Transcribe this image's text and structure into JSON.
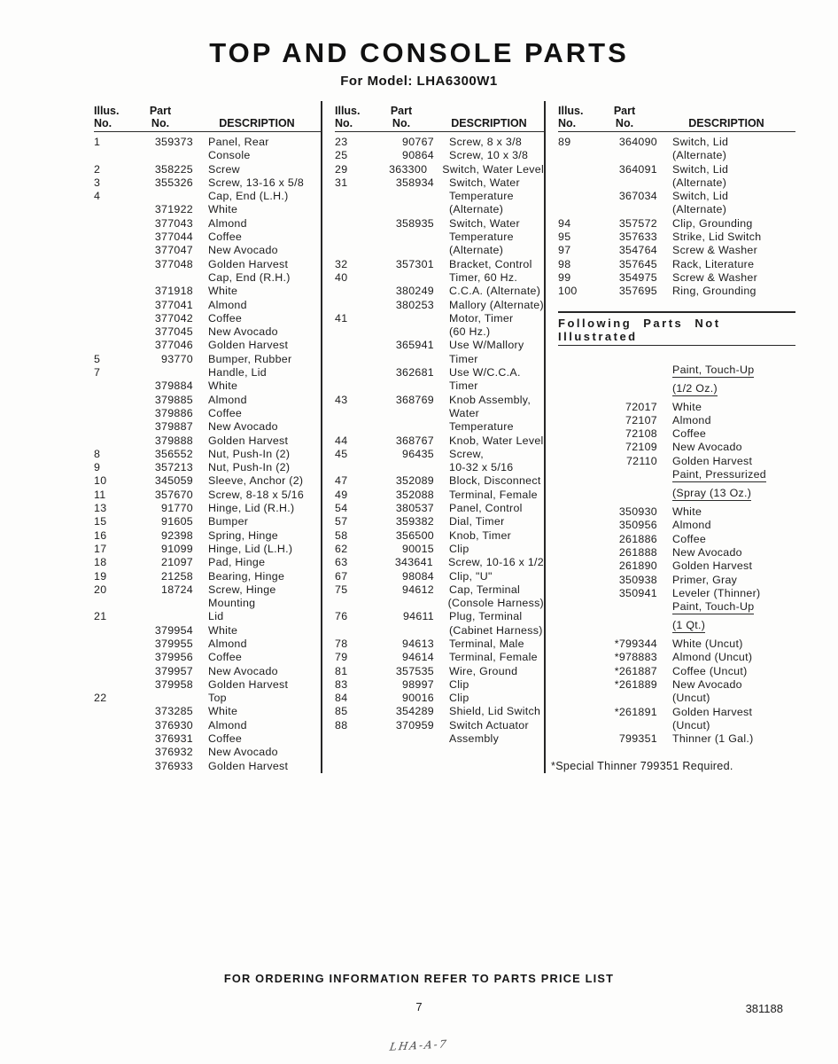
{
  "page": {
    "title": "TOP AND CONSOLE PARTS",
    "subtitle": "For Model: LHA6300W1",
    "footer_note": "FOR ORDERING INFORMATION REFER TO PARTS PRICE LIST",
    "page_number": "7",
    "doc_number": "381188",
    "handwriting": "LHA-A-7"
  },
  "table": {
    "header": {
      "illus1": "Illus.",
      "illus2": "No.",
      "part1": "Part",
      "part2": "No.",
      "desc": "DESCRIPTION"
    },
    "section_header": "Following Parts Not Illustrated",
    "footnote": "*Special Thinner 799351 Required."
  },
  "columns": {
    "col1": [
      {
        "i": "1",
        "p": "359373",
        "d": "Panel, Rear"
      },
      {
        "d": "Console"
      },
      {
        "i": "2",
        "p": "358225",
        "d": "Screw"
      },
      {
        "i": "3",
        "p": "355326",
        "d": "Screw, 13-16 x 5/8"
      },
      {
        "i": "4",
        "d": "Cap, End (L.H.)"
      },
      {
        "p": "371922",
        "d": "White"
      },
      {
        "p": "377043",
        "d": "Almond"
      },
      {
        "p": "377044",
        "d": "Coffee"
      },
      {
        "p": "377047",
        "d": "New Avocado"
      },
      {
        "p": "377048",
        "d": "Golden Harvest"
      },
      {
        "d": "Cap, End (R.H.)"
      },
      {
        "p": "371918",
        "d": "White"
      },
      {
        "p": "377041",
        "d": "Almond"
      },
      {
        "p": "377042",
        "d": "Coffee"
      },
      {
        "p": "377045",
        "d": "New Avocado"
      },
      {
        "p": "377046",
        "d": "Golden Harvest"
      },
      {
        "i": "5",
        "p": "93770",
        "d": "Bumper, Rubber"
      },
      {
        "i": "7",
        "d": "Handle, Lid"
      },
      {
        "p": "379884",
        "d": "White"
      },
      {
        "p": "379885",
        "d": "Almond"
      },
      {
        "p": "379886",
        "d": "Coffee"
      },
      {
        "p": "379887",
        "d": "New Avocado"
      },
      {
        "p": "379888",
        "d": "Golden Harvest"
      },
      {
        "i": "8",
        "p": "356552",
        "d": "Nut, Push-In (2)"
      },
      {
        "i": "9",
        "p": "357213",
        "d": "Nut, Push-In (2)"
      },
      {
        "i": "10",
        "p": "345059",
        "d": "Sleeve, Anchor (2)"
      },
      {
        "i": "11",
        "p": "357670",
        "d": "Screw, 8-18 x 5/16"
      },
      {
        "i": "13",
        "p": "91770",
        "d": "Hinge, Lid (R.H.)"
      },
      {
        "i": "15",
        "p": "91605",
        "d": "Bumper"
      },
      {
        "i": "16",
        "p": "92398",
        "d": "Spring, Hinge"
      },
      {
        "i": "17",
        "p": "91099",
        "d": "Hinge, Lid (L.H.)"
      },
      {
        "i": "18",
        "p": "21097",
        "d": "Pad, Hinge"
      },
      {
        "i": "19",
        "p": "21258",
        "d": "Bearing, Hinge"
      },
      {
        "i": "20",
        "p": "18724",
        "d": "Screw, Hinge"
      },
      {
        "d": "Mounting"
      },
      {
        "i": "21",
        "d": "Lid"
      },
      {
        "p": "379954",
        "d": "White"
      },
      {
        "p": "379955",
        "d": "Almond"
      },
      {
        "p": "379956",
        "d": "Coffee"
      },
      {
        "p": "379957",
        "d": "New Avocado"
      },
      {
        "p": "379958",
        "d": "Golden Harvest"
      },
      {
        "i": "22",
        "d": "Top"
      },
      {
        "p": "373285",
        "d": "White"
      },
      {
        "p": "376930",
        "d": "Almond"
      },
      {
        "p": "376931",
        "d": "Coffee"
      },
      {
        "p": "376932",
        "d": "New Avocado"
      },
      {
        "p": "376933",
        "d": "Golden Harvest"
      }
    ],
    "col2": [
      {
        "i": "23",
        "p": "90767",
        "d": "Screw, 8 x 3/8"
      },
      {
        "i": "25",
        "p": "90864",
        "d": "Screw, 10 x 3/8"
      },
      {
        "i": "29",
        "p": "363300",
        "d": "Switch, Water Level"
      },
      {
        "i": "31",
        "p": "358934",
        "d": "Switch, Water"
      },
      {
        "d": "Temperature"
      },
      {
        "d": "(Alternate)"
      },
      {
        "p": "358935",
        "d": "Switch, Water"
      },
      {
        "d": "Temperature"
      },
      {
        "d": "(Alternate)"
      },
      {
        "i": "32",
        "p": "357301",
        "d": "Bracket, Control"
      },
      {
        "i": "40",
        "d": "Timer, 60 Hz."
      },
      {
        "p": "380249",
        "d": "C.C.A. (Alternate)"
      },
      {
        "p": "380253",
        "d": "Mallory (Alternate)"
      },
      {
        "i": "41",
        "d": "Motor, Timer"
      },
      {
        "d": "(60 Hz.)"
      },
      {
        "p": "365941",
        "d": "Use W/Mallory"
      },
      {
        "d": "Timer"
      },
      {
        "p": "362681",
        "d": "Use W/C.C.A."
      },
      {
        "d": "Timer"
      },
      {
        "i": "43",
        "p": "368769",
        "d": "Knob Assembly,"
      },
      {
        "d": "Water"
      },
      {
        "d": "Temperature"
      },
      {
        "i": "44",
        "p": "368767",
        "d": "Knob, Water Level"
      },
      {
        "i": "45",
        "p": "96435",
        "d": "Screw,"
      },
      {
        "d": "10-32 x 5/16"
      },
      {
        "i": "47",
        "p": "352089",
        "d": "Block, Disconnect"
      },
      {
        "i": "49",
        "p": "352088",
        "d": "Terminal, Female"
      },
      {
        "i": "54",
        "p": "380537",
        "d": "Panel, Control"
      },
      {
        "i": "57",
        "p": "359382",
        "d": "Dial, Timer"
      },
      {
        "i": "58",
        "p": "356500",
        "d": "Knob, Timer"
      },
      {
        "i": "62",
        "p": "90015",
        "d": "Clip"
      },
      {
        "i": "63",
        "p": "343641",
        "d": "Screw, 10-16 x 1/2"
      },
      {
        "i": "67",
        "p": "98084",
        "d": "Clip, \"U\""
      },
      {
        "i": "75",
        "p": "94612",
        "d": "Cap, Terminal"
      },
      {
        "d": "(Console Harness)"
      },
      {
        "i": "76",
        "p": "94611",
        "d": "Plug, Terminal"
      },
      {
        "d": "(Cabinet Harness)"
      },
      {
        "i": "78",
        "p": "94613",
        "d": "Terminal, Male"
      },
      {
        "i": "79",
        "p": "94614",
        "d": "Terminal, Female"
      },
      {
        "i": "81",
        "p": "357535",
        "d": "Wire, Ground"
      },
      {
        "i": "83",
        "p": "98997",
        "d": "Clip"
      },
      {
        "i": "84",
        "p": "90016",
        "d": "Clip"
      },
      {
        "i": "85",
        "p": "354289",
        "d": "Shield, Lid Switch"
      },
      {
        "i": "88",
        "p": "370959",
        "d": "Switch Actuator"
      },
      {
        "d": "Assembly"
      }
    ],
    "col3a": [
      {
        "i": "89",
        "p": "364090",
        "d": "Switch, Lid"
      },
      {
        "d": "(Alternate)"
      },
      {
        "p": "364091",
        "d": "Switch, Lid"
      },
      {
        "d": "(Alternate)"
      },
      {
        "p": "367034",
        "d": "Switch, Lid"
      },
      {
        "d": "(Alternate)"
      },
      {
        "i": "94",
        "p": "357572",
        "d": "Clip, Grounding"
      },
      {
        "i": "95",
        "p": "357633",
        "d": "Strike, Lid Switch"
      },
      {
        "i": "97",
        "p": "354764",
        "d": "Screw & Washer"
      },
      {
        "i": "98",
        "p": "357645",
        "d": "Rack, Literature"
      },
      {
        "i": "99",
        "p": "354975",
        "d": "Screw & Washer"
      },
      {
        "i": "100",
        "p": "357695",
        "d": "Ring, Grounding"
      }
    ],
    "col3b": [
      {
        "d": "Paint, Touch-Up",
        "u": true
      },
      {
        "d": "(1/2 Oz.)",
        "u": true
      },
      {
        "p": "72017",
        "d": "White"
      },
      {
        "p": "72107",
        "d": "Almond"
      },
      {
        "p": "72108",
        "d": "Coffee"
      },
      {
        "p": "72109",
        "d": "New Avocado"
      },
      {
        "p": "72110",
        "d": "Golden Harvest"
      },
      {
        "d": "Paint, Pressurized",
        "u": true
      },
      {
        "d": "(Spray (13 Oz.)",
        "u": true
      },
      {
        "p": "350930",
        "d": "White"
      },
      {
        "p": "350956",
        "d": "Almond"
      },
      {
        "p": "261886",
        "d": "Coffee"
      },
      {
        "p": "261888",
        "d": "New Avocado"
      },
      {
        "p": "261890",
        "d": "Golden Harvest"
      },
      {
        "p": "350938",
        "d": "Primer, Gray"
      },
      {
        "p": "350941",
        "d": "Leveler (Thinner)"
      },
      {
        "d": "Paint, Touch-Up",
        "u": true
      },
      {
        "d": "(1 Qt.)",
        "u": true
      },
      {
        "p": "*799344",
        "d": "White (Uncut)"
      },
      {
        "p": "*978883",
        "d": "Almond (Uncut)"
      },
      {
        "p": "*261887",
        "d": "Coffee (Uncut)"
      },
      {
        "p": "*261889",
        "d": "New Avocado"
      },
      {
        "d": "(Uncut)"
      },
      {
        "p": "*261891",
        "d": "Golden Harvest"
      },
      {
        "d": "(Uncut)"
      },
      {
        "p": "799351",
        "d": "Thinner (1 Gal.)"
      }
    ]
  }
}
